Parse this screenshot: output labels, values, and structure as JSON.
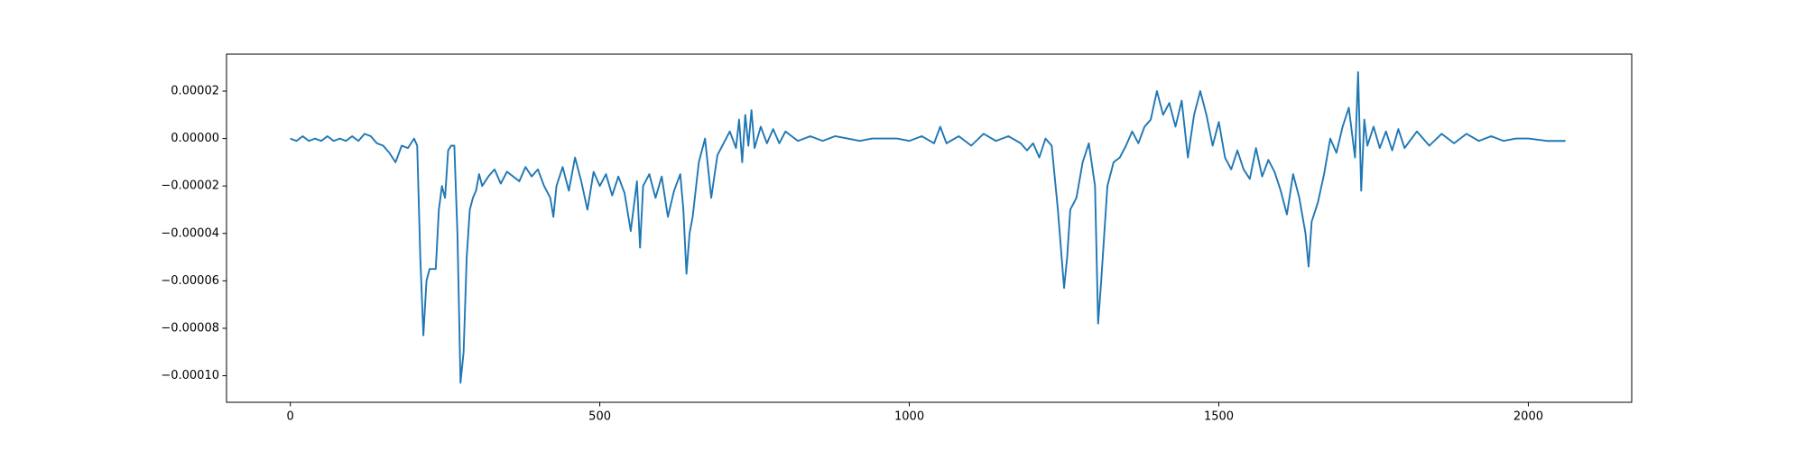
{
  "chart_data": {
    "type": "line",
    "x": [
      0,
      10,
      20,
      30,
      40,
      50,
      60,
      70,
      80,
      90,
      100,
      110,
      120,
      130,
      140,
      150,
      160,
      170,
      180,
      190,
      200,
      205,
      210,
      215,
      220,
      225,
      235,
      240,
      245,
      250,
      255,
      260,
      265,
      270,
      275,
      280,
      285,
      290,
      295,
      300,
      305,
      310,
      320,
      330,
      340,
      350,
      360,
      370,
      380,
      390,
      400,
      410,
      420,
      425,
      430,
      440,
      450,
      460,
      470,
      480,
      490,
      500,
      510,
      520,
      530,
      540,
      550,
      560,
      565,
      570,
      580,
      590,
      600,
      610,
      620,
      630,
      635,
      640,
      645,
      650,
      660,
      670,
      680,
      690,
      700,
      710,
      720,
      725,
      730,
      735,
      740,
      745,
      750,
      760,
      770,
      780,
      790,
      800,
      820,
      840,
      860,
      880,
      900,
      920,
      940,
      960,
      980,
      1000,
      1020,
      1040,
      1050,
      1060,
      1080,
      1100,
      1120,
      1140,
      1160,
      1180,
      1190,
      1200,
      1210,
      1220,
      1230,
      1240,
      1250,
      1255,
      1260,
      1270,
      1280,
      1290,
      1300,
      1305,
      1310,
      1320,
      1330,
      1340,
      1350,
      1360,
      1370,
      1380,
      1390,
      1400,
      1410,
      1420,
      1430,
      1440,
      1450,
      1460,
      1470,
      1480,
      1490,
      1500,
      1510,
      1520,
      1530,
      1540,
      1550,
      1560,
      1570,
      1580,
      1590,
      1600,
      1610,
      1620,
      1630,
      1640,
      1645,
      1650,
      1660,
      1670,
      1680,
      1690,
      1700,
      1710,
      1720,
      1725,
      1730,
      1735,
      1740,
      1750,
      1760,
      1770,
      1780,
      1790,
      1800,
      1820,
      1840,
      1860,
      1880,
      1900,
      1920,
      1940,
      1960,
      1980,
      2000,
      2030,
      2060
    ],
    "series": [
      {
        "color": "#1f77b4",
        "values": [
          0,
          -1e-06,
          1e-06,
          -1e-06,
          0,
          -1e-06,
          1e-06,
          -1e-06,
          0,
          -1e-06,
          1e-06,
          -1e-06,
          2e-06,
          1e-06,
          -2e-06,
          -3e-06,
          -6e-06,
          -1e-05,
          -3e-06,
          -4e-06,
          0,
          -3e-06,
          -5e-05,
          -8.3e-05,
          -6e-05,
          -5.5e-05,
          -5.5e-05,
          -3e-05,
          -2e-05,
          -2.5e-05,
          -5e-06,
          -3e-06,
          -3e-06,
          -4e-05,
          -0.000103,
          -9e-05,
          -5e-05,
          -3e-05,
          -2.5e-05,
          -2.2e-05,
          -1.5e-05,
          -2e-05,
          -1.6e-05,
          -1.3e-05,
          -1.9e-05,
          -1.4e-05,
          -1.6e-05,
          -1.8e-05,
          -1.2e-05,
          -1.6e-05,
          -1.3e-05,
          -2e-05,
          -2.5e-05,
          -3.3e-05,
          -2e-05,
          -1.2e-05,
          -2.2e-05,
          -8e-06,
          -1.8e-05,
          -3e-05,
          -1.4e-05,
          -2e-05,
          -1.5e-05,
          -2.4e-05,
          -1.6e-05,
          -2.3e-05,
          -3.9e-05,
          -1.8e-05,
          -4.6e-05,
          -2e-05,
          -1.5e-05,
          -2.5e-05,
          -1.6e-05,
          -3.3e-05,
          -2.2e-05,
          -1.5e-05,
          -3e-05,
          -5.7e-05,
          -4e-05,
          -3.3e-05,
          -1e-05,
          0,
          -2.5e-05,
          -7e-06,
          -2e-06,
          3e-06,
          -4e-06,
          8e-06,
          -1e-05,
          1e-05,
          -3e-06,
          1.2e-05,
          -4e-06,
          5e-06,
          -2e-06,
          4e-06,
          -2e-06,
          3e-06,
          -1e-06,
          1e-06,
          -1e-06,
          1e-06,
          0,
          -1e-06,
          0,
          0,
          0,
          -1e-06,
          1e-06,
          -2e-06,
          5e-06,
          -2e-06,
          1e-06,
          -3e-06,
          2e-06,
          -1e-06,
          1e-06,
          -2e-06,
          -5e-06,
          -2e-06,
          -8e-06,
          0,
          -3e-06,
          -3e-05,
          -6.3e-05,
          -5e-05,
          -3e-05,
          -2.5e-05,
          -1e-05,
          -2e-06,
          -2e-05,
          -7.8e-05,
          -6e-05,
          -2e-05,
          -1e-05,
          -8e-06,
          -3e-06,
          3e-06,
          -2e-06,
          5e-06,
          8e-06,
          2e-05,
          1e-05,
          1.5e-05,
          5e-06,
          1.6e-05,
          -8e-06,
          1e-05,
          2e-05,
          1e-05,
          -3e-06,
          7e-06,
          -8e-06,
          -1.3e-05,
          -5e-06,
          -1.3e-05,
          -1.7e-05,
          -4e-06,
          -1.6e-05,
          -9e-06,
          -1.4e-05,
          -2.2e-05,
          -3.2e-05,
          -1.5e-05,
          -2.5e-05,
          -4e-05,
          -5.4e-05,
          -3.5e-05,
          -2.7e-05,
          -1.5e-05,
          0,
          -6e-06,
          5e-06,
          1.3e-05,
          -8e-06,
          2.8e-05,
          -2.2e-05,
          8e-06,
          -3e-06,
          5e-06,
          -4e-06,
          3e-06,
          -5e-06,
          4e-06,
          -4e-06,
          3e-06,
          -3e-06,
          2e-06,
          -2e-06,
          2e-06,
          -1e-06,
          1e-06,
          -1e-06,
          0,
          0,
          -1e-06,
          -1e-06
        ]
      }
    ],
    "xlim": [
      -103,
      2167
    ],
    "xticks": [
      0,
      500,
      1000,
      1500,
      2000
    ],
    "ylim": [
      -0.0001112,
      3.56e-05
    ],
    "yticks": [
      {
        "value": 2e-05,
        "label": "0.00002"
      },
      {
        "value": 0,
        "label": "0.00000"
      },
      {
        "value": -2e-05,
        "label": "−0.00002"
      },
      {
        "value": -4e-05,
        "label": "−0.00004"
      },
      {
        "value": -6e-05,
        "label": "−0.00006"
      },
      {
        "value": -8e-05,
        "label": "−0.00008"
      },
      {
        "value": -0.0001,
        "label": "−0.00010"
      }
    ]
  }
}
